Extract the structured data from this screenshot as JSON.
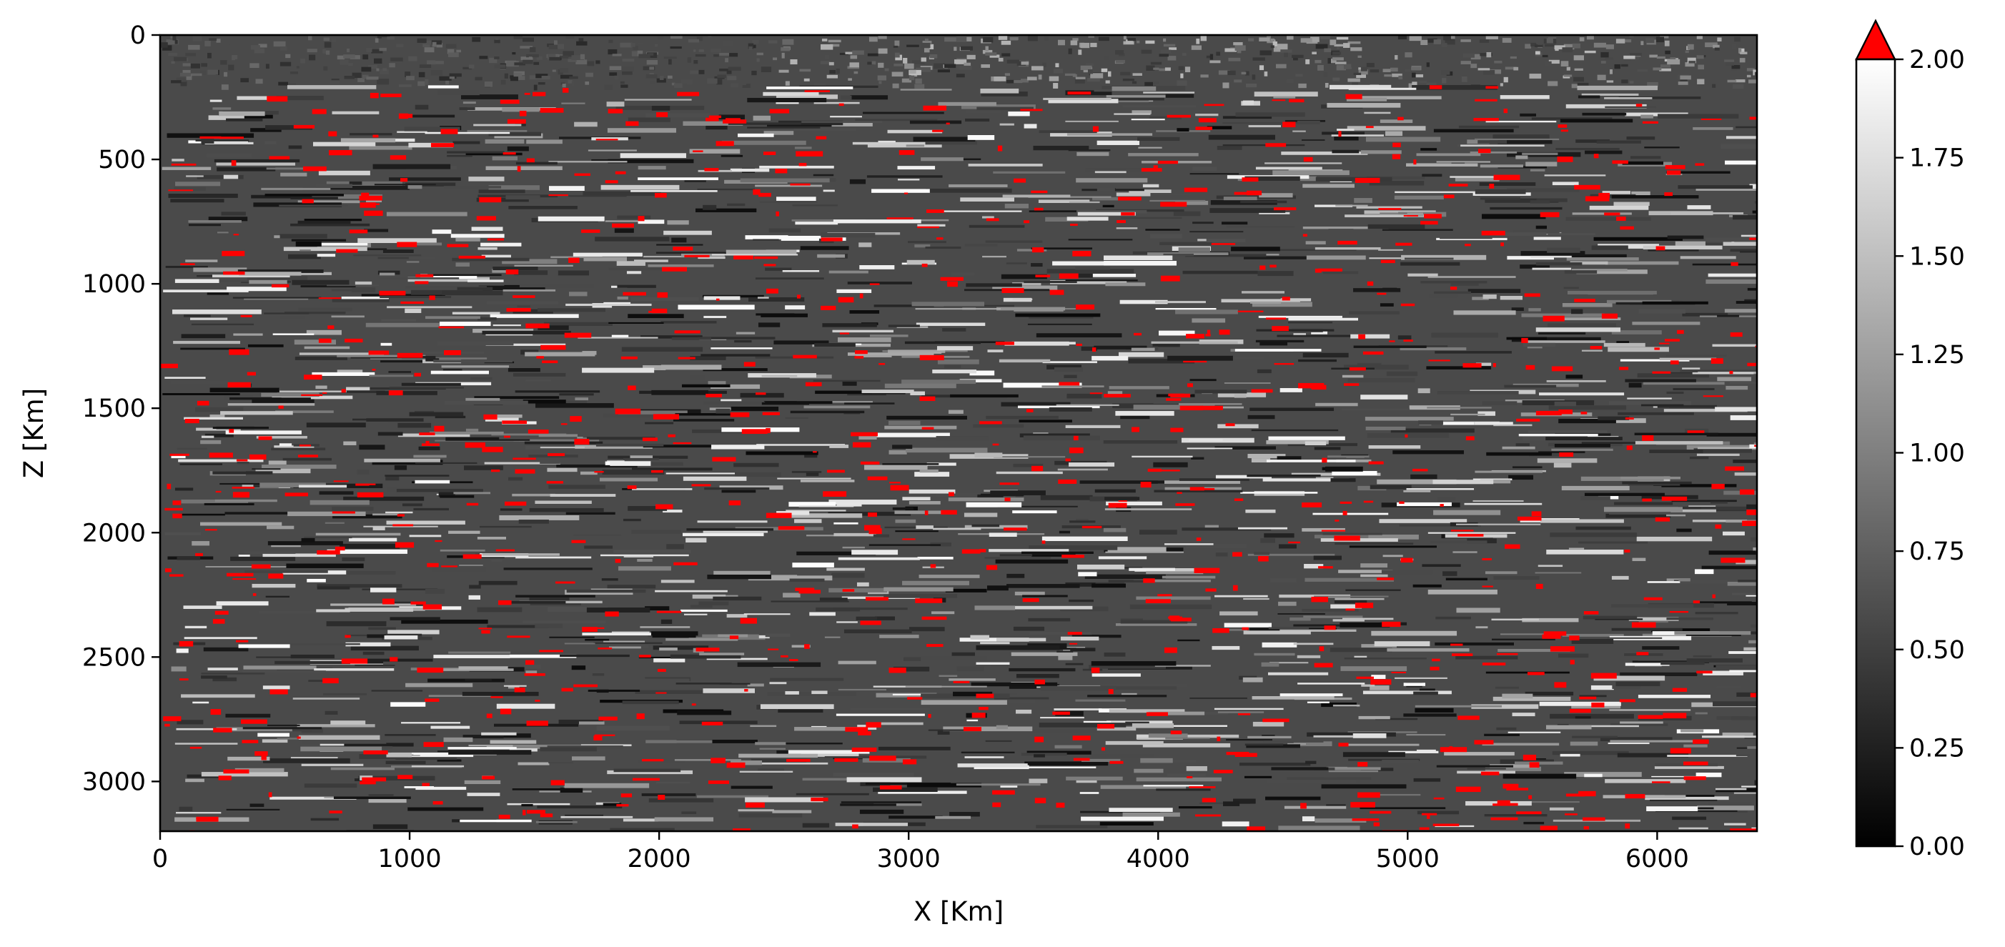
{
  "chart_data": {
    "type": "heatmap",
    "title": "",
    "xlabel": "X [Km]",
    "ylabel": "Z [Km]",
    "xlim": [
      0,
      6400
    ],
    "ylim": [
      3200,
      0
    ],
    "y_axis_inverted": true,
    "x_ticks": [
      "0",
      "1000",
      "2000",
      "3000",
      "4000",
      "5000",
      "6000"
    ],
    "x_tick_values": [
      0,
      1000,
      2000,
      3000,
      4000,
      5000,
      6000
    ],
    "y_ticks": [
      "0",
      "500",
      "1000",
      "1500",
      "2000",
      "2500",
      "3000"
    ],
    "y_tick_values": [
      0,
      500,
      1000,
      1500,
      2000,
      2500,
      3000
    ],
    "colormap": "gray",
    "over_color": "#ff0000",
    "grid": false,
    "top_layer_depth": 200,
    "colorbar": {
      "vmin": 0.0,
      "vmax": 2.0,
      "extend": "max",
      "ticks": [
        "0.00",
        "0.25",
        "0.50",
        "0.75",
        "1.00",
        "1.25",
        "1.50",
        "1.75",
        "2.00"
      ],
      "tick_values": [
        0,
        0.25,
        0.5,
        0.75,
        1.0,
        1.25,
        1.5,
        1.75,
        2.0
      ]
    }
  }
}
